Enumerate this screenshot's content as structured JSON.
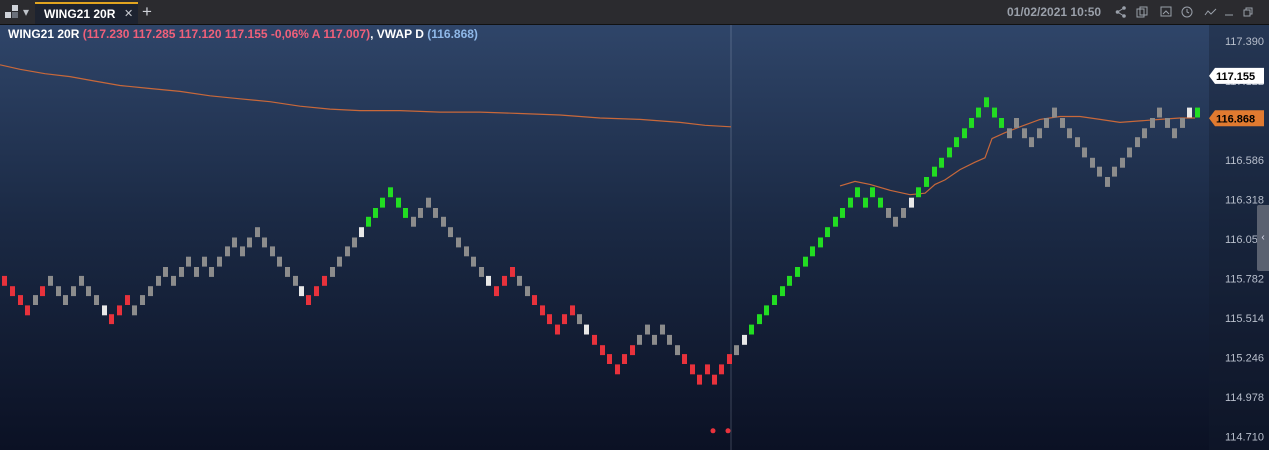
{
  "toolbar": {
    "tab_label": "WING21 20R",
    "close_icon": "✕",
    "add_icon": "+",
    "datetime": "01/02/2021 10:50",
    "icons": [
      "layout-icon",
      "share-icon",
      "copy-icon",
      "clock-icon",
      "indicator-icon",
      "minimize-icon",
      "restore-icon",
      "close-window-icon"
    ]
  },
  "legend": {
    "symbol": "WING21 20R",
    "ohlc": "(117.230  117.285  117.120  117.155  -0,06%  A 117.007)",
    "vwap_label": "VWAP D",
    "vwap_value": "(116.868)"
  },
  "chart_data": {
    "type": "renko",
    "brick_size": 0.067,
    "ylim": [
      114.62,
      117.5
    ],
    "y_ticks": [
      "117.390",
      "117.122",
      "116.854",
      "116.586",
      "116.318",
      "116.05",
      "115.782",
      "115.514",
      "115.246",
      "114.978",
      "114.710"
    ],
    "price_label": {
      "value": "117.155",
      "color": "#ffffff"
    },
    "vwap_price_label": {
      "value": "116.868",
      "color": "#e07a30"
    },
    "colors": {
      "up": "#22dd22",
      "down": "#e8323c",
      "neutral": "#8c8c8c",
      "reversal": "#e8e8e8",
      "vwap": "#c8683a"
    },
    "bricks": [
      [
        2,
        115.8,
        "d"
      ],
      [
        10,
        115.73,
        "d"
      ],
      [
        18,
        115.67,
        "d"
      ],
      [
        25,
        115.6,
        "d"
      ],
      [
        33,
        115.67,
        "n"
      ],
      [
        40,
        115.73,
        "d"
      ],
      [
        48,
        115.8,
        "n"
      ],
      [
        56,
        115.73,
        "n"
      ],
      [
        63,
        115.67,
        "n"
      ],
      [
        71,
        115.73,
        "n"
      ],
      [
        79,
        115.8,
        "n"
      ],
      [
        86,
        115.73,
        "n"
      ],
      [
        94,
        115.67,
        "n"
      ],
      [
        102,
        115.6,
        "w"
      ],
      [
        109,
        115.54,
        "d"
      ],
      [
        117,
        115.6,
        "d"
      ],
      [
        125,
        115.67,
        "d"
      ],
      [
        132,
        115.6,
        "n"
      ],
      [
        140,
        115.67,
        "n"
      ],
      [
        148,
        115.73,
        "n"
      ],
      [
        156,
        115.8,
        "n"
      ],
      [
        163,
        115.86,
        "n"
      ],
      [
        171,
        115.8,
        "n"
      ],
      [
        179,
        115.86,
        "n"
      ],
      [
        186,
        115.93,
        "n"
      ],
      [
        194,
        115.86,
        "n"
      ],
      [
        202,
        115.93,
        "n"
      ],
      [
        209,
        115.86,
        "n"
      ],
      [
        217,
        115.93,
        "n"
      ],
      [
        225,
        116.0,
        "n"
      ],
      [
        232,
        116.06,
        "n"
      ],
      [
        240,
        116.0,
        "n"
      ],
      [
        247,
        116.06,
        "n"
      ],
      [
        255,
        116.13,
        "n"
      ],
      [
        262,
        116.06,
        "n"
      ],
      [
        270,
        116.0,
        "n"
      ],
      [
        277,
        115.93,
        "n"
      ],
      [
        285,
        115.86,
        "n"
      ],
      [
        293,
        115.8,
        "n"
      ],
      [
        299,
        115.73,
        "w"
      ],
      [
        306,
        115.67,
        "d"
      ],
      [
        314,
        115.73,
        "d"
      ],
      [
        322,
        115.8,
        "d"
      ],
      [
        330,
        115.86,
        "n"
      ],
      [
        337,
        115.93,
        "n"
      ],
      [
        345,
        116.0,
        "n"
      ],
      [
        352,
        116.06,
        "n"
      ],
      [
        359,
        116.13,
        "w"
      ],
      [
        366,
        116.2,
        "u"
      ],
      [
        373,
        116.26,
        "u"
      ],
      [
        380,
        116.33,
        "u"
      ],
      [
        388,
        116.4,
        "u"
      ],
      [
        396,
        116.33,
        "u"
      ],
      [
        403,
        116.26,
        "u"
      ],
      [
        411,
        116.2,
        "n"
      ],
      [
        418,
        116.26,
        "n"
      ],
      [
        426,
        116.33,
        "n"
      ],
      [
        433,
        116.26,
        "n"
      ],
      [
        441,
        116.2,
        "n"
      ],
      [
        448,
        116.13,
        "n"
      ],
      [
        456,
        116.06,
        "n"
      ],
      [
        464,
        116.0,
        "n"
      ],
      [
        471,
        115.93,
        "n"
      ],
      [
        479,
        115.86,
        "n"
      ],
      [
        486,
        115.8,
        "w"
      ],
      [
        494,
        115.73,
        "d"
      ],
      [
        502,
        115.8,
        "d"
      ],
      [
        510,
        115.86,
        "d"
      ],
      [
        517,
        115.8,
        "n"
      ],
      [
        525,
        115.73,
        "n"
      ],
      [
        532,
        115.67,
        "d"
      ],
      [
        540,
        115.6,
        "d"
      ],
      [
        547,
        115.54,
        "d"
      ],
      [
        555,
        115.47,
        "d"
      ],
      [
        562,
        115.54,
        "d"
      ],
      [
        570,
        115.6,
        "d"
      ],
      [
        577,
        115.54,
        "n"
      ],
      [
        584,
        115.47,
        "w"
      ],
      [
        592,
        115.4,
        "d"
      ],
      [
        600,
        115.33,
        "d"
      ],
      [
        607,
        115.27,
        "d"
      ],
      [
        615,
        115.2,
        "d"
      ],
      [
        622,
        115.27,
        "d"
      ],
      [
        630,
        115.33,
        "d"
      ],
      [
        637,
        115.4,
        "n"
      ],
      [
        645,
        115.47,
        "n"
      ],
      [
        652,
        115.4,
        "n"
      ],
      [
        660,
        115.47,
        "n"
      ],
      [
        667,
        115.4,
        "n"
      ],
      [
        675,
        115.33,
        "n"
      ],
      [
        682,
        115.27,
        "d"
      ],
      [
        690,
        115.2,
        "d"
      ],
      [
        697,
        115.13,
        "d"
      ],
      [
        705,
        115.2,
        "d"
      ],
      [
        712,
        115.13,
        "d"
      ],
      [
        719,
        115.2,
        "d"
      ],
      [
        727,
        115.27,
        "d"
      ],
      [
        734,
        115.33,
        "n"
      ],
      [
        742,
        115.4,
        "w"
      ],
      [
        749,
        115.47,
        "u"
      ],
      [
        757,
        115.54,
        "u"
      ],
      [
        764,
        115.6,
        "u"
      ],
      [
        772,
        115.67,
        "u"
      ],
      [
        780,
        115.73,
        "u"
      ],
      [
        787,
        115.8,
        "u"
      ],
      [
        795,
        115.86,
        "u"
      ],
      [
        803,
        115.93,
        "u"
      ],
      [
        810,
        116.0,
        "u"
      ],
      [
        818,
        116.06,
        "u"
      ],
      [
        825,
        116.13,
        "u"
      ],
      [
        833,
        116.2,
        "u"
      ],
      [
        840,
        116.26,
        "u"
      ],
      [
        848,
        116.33,
        "u"
      ],
      [
        855,
        116.4,
        "u"
      ],
      [
        863,
        116.33,
        "u"
      ],
      [
        870,
        116.4,
        "u"
      ],
      [
        878,
        116.33,
        "u"
      ],
      [
        886,
        116.26,
        "n"
      ],
      [
        893,
        116.2,
        "n"
      ],
      [
        901,
        116.26,
        "n"
      ],
      [
        909,
        116.33,
        "w"
      ],
      [
        916,
        116.4,
        "u"
      ],
      [
        924,
        116.47,
        "u"
      ],
      [
        932,
        116.54,
        "u"
      ],
      [
        939,
        116.6,
        "u"
      ],
      [
        947,
        116.67,
        "u"
      ],
      [
        954,
        116.74,
        "u"
      ],
      [
        962,
        116.8,
        "u"
      ],
      [
        969,
        116.87,
        "u"
      ],
      [
        976,
        116.94,
        "u"
      ],
      [
        984,
        117.01,
        "u"
      ],
      [
        992,
        116.94,
        "u"
      ],
      [
        999,
        116.87,
        "u"
      ],
      [
        1007,
        116.8,
        "n"
      ],
      [
        1014,
        116.87,
        "n"
      ],
      [
        1022,
        116.8,
        "n"
      ],
      [
        1029,
        116.74,
        "n"
      ],
      [
        1037,
        116.8,
        "n"
      ],
      [
        1044,
        116.87,
        "n"
      ],
      [
        1052,
        116.94,
        "n"
      ],
      [
        1060,
        116.87,
        "n"
      ],
      [
        1067,
        116.8,
        "n"
      ],
      [
        1075,
        116.74,
        "n"
      ],
      [
        1082,
        116.67,
        "n"
      ],
      [
        1090,
        116.6,
        "n"
      ],
      [
        1097,
        116.54,
        "n"
      ],
      [
        1105,
        116.47,
        "n"
      ],
      [
        1112,
        116.54,
        "n"
      ],
      [
        1120,
        116.6,
        "n"
      ],
      [
        1127,
        116.67,
        "n"
      ],
      [
        1135,
        116.74,
        "n"
      ],
      [
        1142,
        116.8,
        "n"
      ],
      [
        1150,
        116.87,
        "n"
      ],
      [
        1157,
        116.94,
        "n"
      ],
      [
        1165,
        116.87,
        "n"
      ],
      [
        1172,
        116.8,
        "n"
      ],
      [
        1180,
        116.87,
        "n"
      ],
      [
        1187,
        116.94,
        "w"
      ],
      [
        1195,
        116.94,
        "u"
      ]
    ],
    "vwap": [
      [
        0,
        117.23
      ],
      [
        20,
        117.2
      ],
      [
        45,
        117.17
      ],
      [
        70,
        117.15
      ],
      [
        95,
        117.12
      ],
      [
        120,
        117.09
      ],
      [
        150,
        117.07
      ],
      [
        180,
        117.05
      ],
      [
        210,
        117.02
      ],
      [
        240,
        117.0
      ],
      [
        270,
        116.98
      ],
      [
        300,
        116.95
      ],
      [
        330,
        116.93
      ],
      [
        360,
        116.92
      ],
      [
        400,
        116.92
      ],
      [
        440,
        116.91
      ],
      [
        480,
        116.91
      ],
      [
        520,
        116.9
      ],
      [
        560,
        116.89
      ],
      [
        600,
        116.87
      ],
      [
        640,
        116.86
      ],
      [
        680,
        116.84
      ],
      [
        705,
        116.82
      ],
      [
        731,
        116.81
      ],
      [
        840,
        116.41
      ],
      [
        855,
        116.44
      ],
      [
        870,
        116.42
      ],
      [
        890,
        116.38
      ],
      [
        910,
        116.35
      ],
      [
        925,
        116.36
      ],
      [
        935,
        116.42
      ],
      [
        945,
        116.45
      ],
      [
        960,
        116.52
      ],
      [
        975,
        116.57
      ],
      [
        985,
        116.6
      ],
      [
        992,
        116.73
      ],
      [
        1005,
        116.77
      ],
      [
        1020,
        116.81
      ],
      [
        1040,
        116.86
      ],
      [
        1060,
        116.88
      ],
      [
        1080,
        116.88
      ],
      [
        1100,
        116.86
      ],
      [
        1120,
        116.84
      ],
      [
        1140,
        116.85
      ],
      [
        1160,
        116.86
      ],
      [
        1180,
        116.87
      ],
      [
        1195,
        116.87
      ]
    ],
    "markers": [
      [
        713,
        114.75
      ],
      [
        728,
        114.75
      ]
    ],
    "crosshair_x": 731
  }
}
